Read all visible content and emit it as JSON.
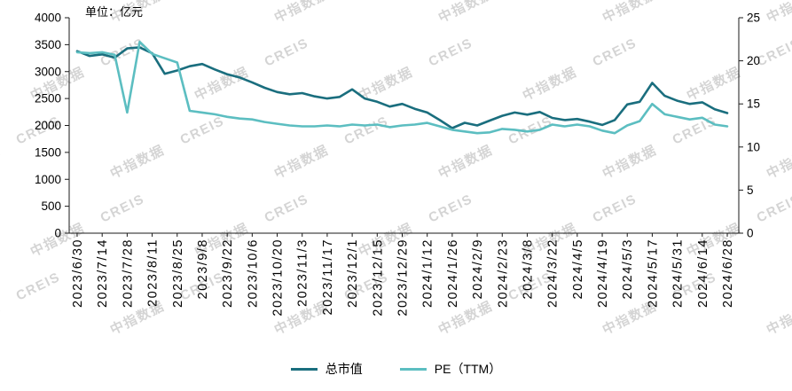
{
  "unit_label": "单位：亿元",
  "watermark": {
    "text_cn": "中指数据",
    "text_en": "CREIS"
  },
  "chart_data": {
    "type": "line",
    "title": "",
    "xlabel": "",
    "ylabel_left": "亿元",
    "grid": false,
    "legend_position": "bottom",
    "x_tick_every": 2,
    "x": [
      "2023/6/30",
      "2023/7/7",
      "2023/7/14",
      "2023/7/21",
      "2023/7/28",
      "2023/8/4",
      "2023/8/11",
      "2023/8/18",
      "2023/8/25",
      "2023/9/1",
      "2023/9/8",
      "2023/9/15",
      "2023/9/22",
      "2023/9/29",
      "2023/10/6",
      "2023/10/13",
      "2023/10/20",
      "2023/10/27",
      "2023/11/3",
      "2023/11/10",
      "2023/11/17",
      "2023/11/24",
      "2023/12/1",
      "2023/12/8",
      "2023/12/15",
      "2023/12/22",
      "2023/12/29",
      "2024/1/5",
      "2024/1/12",
      "2024/1/19",
      "2024/1/26",
      "2024/2/2",
      "2024/2/9",
      "2024/2/16",
      "2024/2/23",
      "2024/3/1",
      "2024/3/8",
      "2024/3/15",
      "2024/3/22",
      "2024/3/29",
      "2024/4/5",
      "2024/4/12",
      "2024/4/19",
      "2024/4/26",
      "2024/5/3",
      "2024/5/10",
      "2024/5/17",
      "2024/5/24",
      "2024/5/31",
      "2024/6/7",
      "2024/6/14",
      "2024/6/21",
      "2024/6/28"
    ],
    "left_axis": {
      "min": 0,
      "max": 4000,
      "step": 500
    },
    "right_axis": {
      "min": 0,
      "max": 25,
      "step": 5
    },
    "series": [
      {
        "name": "总市值",
        "key": "market-cap",
        "axis": "left",
        "color": "#1a6e7e",
        "values": [
          3380,
          3290,
          3320,
          3260,
          3430,
          3450,
          3340,
          2960,
          3020,
          3100,
          3140,
          3040,
          2950,
          2890,
          2800,
          2700,
          2620,
          2580,
          2600,
          2540,
          2500,
          2530,
          2670,
          2500,
          2440,
          2350,
          2400,
          2310,
          2240,
          2100,
          1950,
          2050,
          2000,
          2090,
          2180,
          2240,
          2200,
          2250,
          2140,
          2100,
          2120,
          2070,
          2010,
          2100,
          2390,
          2440,
          2790,
          2550,
          2460,
          2400,
          2430,
          2300,
          2230
        ]
      },
      {
        "name": "PE（TTM）",
        "key": "pe-ttm",
        "axis": "right",
        "color": "#5cbec1",
        "values": [
          21.0,
          20.9,
          21.0,
          20.7,
          14.0,
          22.2,
          20.8,
          20.3,
          19.8,
          14.2,
          14.0,
          13.8,
          13.5,
          13.3,
          13.2,
          12.9,
          12.7,
          12.5,
          12.4,
          12.4,
          12.5,
          12.4,
          12.6,
          12.5,
          12.6,
          12.3,
          12.5,
          12.6,
          12.8,
          12.4,
          12.0,
          11.8,
          11.6,
          11.7,
          12.1,
          12.0,
          11.8,
          12.0,
          12.6,
          12.4,
          12.6,
          12.4,
          11.9,
          11.6,
          12.5,
          13.0,
          15.0,
          13.8,
          13.5,
          13.2,
          13.4,
          12.6,
          12.4
        ]
      }
    ]
  }
}
